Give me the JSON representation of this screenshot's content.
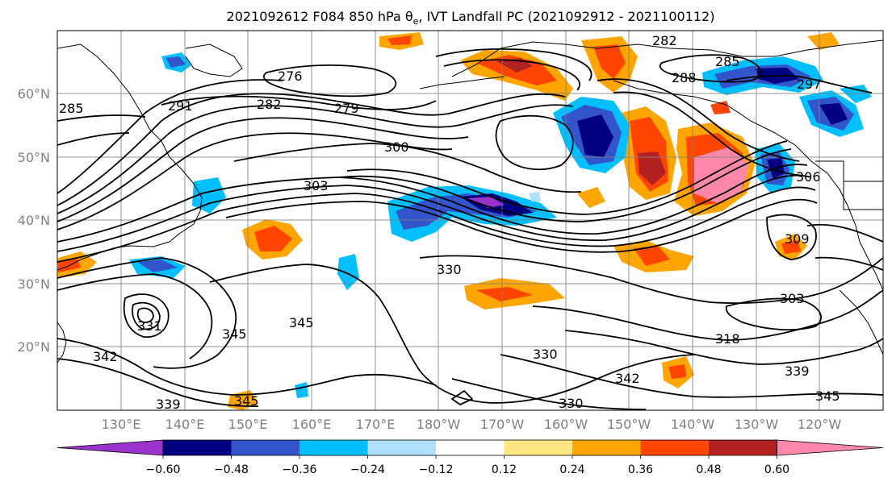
{
  "title": "2021092612 F084 850 hPa θe, IVT Landfall PC (2021092912 - 2021100112)",
  "title_parts": {
    "pre": "2021092612 F084 850 hPa θ",
    "sub": "e",
    "post": ", IVT Landfall PC (2021092912 - 2021100112)"
  },
  "map": {
    "lon_labels": [
      "130°E",
      "140°E",
      "150°E",
      "160°E",
      "170°E",
      "180°W",
      "170°W",
      "160°W",
      "150°W",
      "140°W",
      "130°W",
      "120°W"
    ],
    "lat_labels": [
      "60°N",
      "50°N",
      "40°N",
      "30°N",
      "20°N"
    ],
    "contour_labels": [
      "276",
      "282",
      "282",
      "285",
      "288",
      "279",
      "291",
      "300",
      "303",
      "297",
      "306",
      "309",
      "285",
      "330",
      "303",
      "318",
      "331",
      "345",
      "345",
      "342",
      "330",
      "342",
      "339",
      "339",
      "345",
      "345",
      "330"
    ]
  },
  "colorbar": {
    "ticks": [
      "−0.60",
      "−0.48",
      "−0.36",
      "−0.24",
      "−0.12",
      "0.12",
      "0.24",
      "0.36",
      "0.48",
      "0.60"
    ],
    "colors": [
      "#9933cc",
      "#000080",
      "#3355cc",
      "#00bfff",
      "#b0e0ff",
      "#ffffff",
      "#ffe680",
      "#ffa500",
      "#ff4500",
      "#b22222",
      "#ff88aa"
    ]
  },
  "colors": {
    "contour": "#000000",
    "coast": "#000000",
    "grid": "#808080",
    "neg_strong": "#000080",
    "neg_mid": "#3355cc",
    "neg_light": "#00bfff",
    "pos_light": "#ffa500",
    "pos_mid": "#ff4500",
    "pos_strong": "#b22222",
    "pos_max": "#ff88aa"
  }
}
